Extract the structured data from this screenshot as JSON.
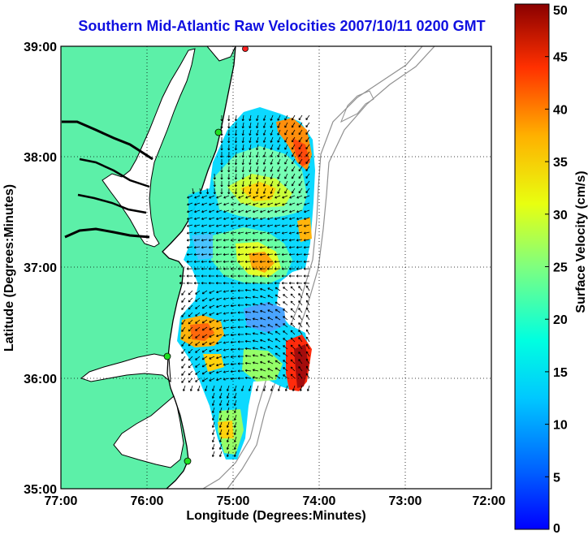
{
  "title": "Southern Mid-Atlantic Raw Velocities 2007/10/11 0200 GMT",
  "map": {
    "xlabel": "Longitude (Degrees:Minutes)",
    "ylabel": "Latitude (Degrees:Minutes)",
    "x_ticks": [
      "77:00",
      "76:00",
      "75:00",
      "74:00",
      "73:00",
      "72:00"
    ],
    "y_ticks": [
      "39:00",
      "38:00",
      "37:00",
      "36:00",
      "35:00"
    ],
    "lon_range": [
      -77,
      -72
    ],
    "lat_range": [
      35,
      39
    ],
    "grid": true,
    "land_color": "#5cf0a8",
    "water_color": "#ffffff",
    "coastline_color": "#000000",
    "bathymetry_color": "#909090",
    "radar_site_color": "#20e020"
  },
  "colorbar": {
    "label": "Surface Velocity (cm/s)",
    "ticks": [
      "0",
      "5",
      "10",
      "15",
      "20",
      "25",
      "30",
      "35",
      "40",
      "45",
      "50"
    ],
    "range": [
      0,
      50
    ],
    "colormap": "jet"
  }
}
